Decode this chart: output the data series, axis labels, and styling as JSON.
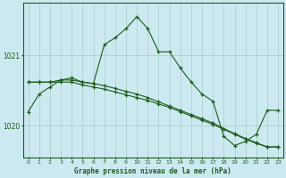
{
  "title": "Graphe pression niveau de la mer (hPa)",
  "bg_color": "#cde9f0",
  "grid_color": "#a8cccc",
  "line_color": "#1a5c1a",
  "xlim": [
    -0.5,
    23.5
  ],
  "ylim": [
    1019.55,
    1021.75
  ],
  "yticks": [
    1020,
    1021
  ],
  "xticks": [
    0,
    1,
    2,
    3,
    4,
    5,
    6,
    7,
    8,
    9,
    10,
    11,
    12,
    13,
    14,
    15,
    16,
    17,
    18,
    19,
    20,
    21,
    22,
    23
  ],
  "series1": [
    1020.2,
    1020.45,
    1020.55,
    1020.65,
    1020.68,
    1020.62,
    1020.6,
    1021.15,
    1021.25,
    1021.38,
    1021.55,
    1021.38,
    1021.05,
    1021.05,
    1020.82,
    1020.62,
    1020.45,
    1020.35,
    1019.85,
    1019.72,
    1019.78,
    1019.88,
    1020.22,
    1020.22
  ],
  "series2": [
    1020.62,
    1020.62,
    1020.62,
    1020.62,
    1020.62,
    1020.58,
    1020.55,
    1020.52,
    1020.48,
    1020.44,
    1020.4,
    1020.36,
    1020.31,
    1020.26,
    1020.2,
    1020.14,
    1020.08,
    1020.02,
    1019.95,
    1019.88,
    1019.81,
    1019.75,
    1019.7,
    1019.7
  ],
  "series3": [
    1020.62,
    1020.62,
    1020.62,
    1020.65,
    1020.65,
    1020.62,
    1020.6,
    1020.57,
    1020.53,
    1020.49,
    1020.45,
    1020.4,
    1020.34,
    1020.28,
    1020.22,
    1020.16,
    1020.1,
    1020.04,
    1019.96,
    1019.89,
    1019.82,
    1019.76,
    1019.7,
    1019.7
  ]
}
